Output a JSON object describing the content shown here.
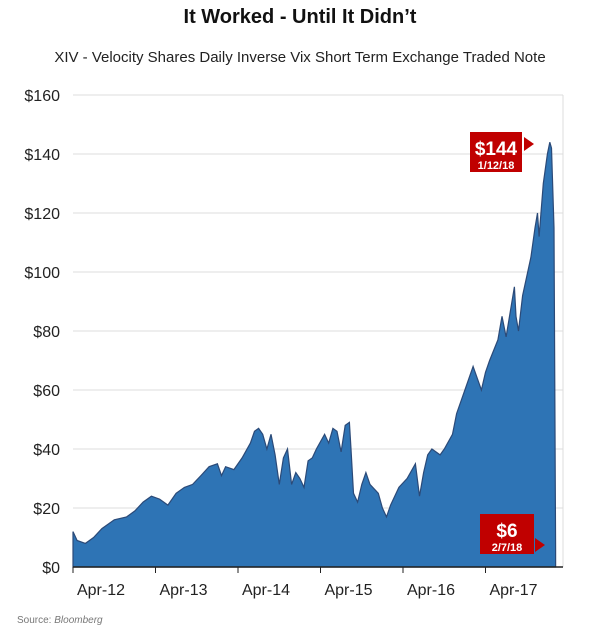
{
  "chart_data": {
    "type": "area",
    "title": "It Worked - Until It Didn’t",
    "subtitle": "XIV - Velocity Shares Daily Inverse Vix Short Term Exchange Traded Note",
    "xlabel": "",
    "ylabel": "",
    "ylim": [
      0,
      160
    ],
    "y_ticks": [
      "$0",
      "$20",
      "$40",
      "$60",
      "$80",
      "$100",
      "$120",
      "$140",
      "$160"
    ],
    "y_tick_values": [
      0,
      20,
      40,
      60,
      80,
      100,
      120,
      140,
      160
    ],
    "x_ticks": [
      "Apr-12",
      "Apr-13",
      "Apr-14",
      "Apr-15",
      "Apr-16",
      "Apr-17"
    ],
    "x_tick_values": [
      2012.25,
      2013.25,
      2014.25,
      2015.25,
      2016.25,
      2017.25
    ],
    "xlim": [
      2012.25,
      2018.2
    ],
    "grid": "horizontal",
    "color": "#2e74b5",
    "line_color": "#2b4a78",
    "series": [
      {
        "name": "XIV",
        "x": [
          2012.25,
          2012.3,
          2012.4,
          2012.5,
          2012.6,
          2012.75,
          2012.9,
          2013.0,
          2013.1,
          2013.2,
          2013.3,
          2013.4,
          2013.5,
          2013.6,
          2013.7,
          2013.8,
          2013.9,
          2014.0,
          2014.05,
          2014.1,
          2014.2,
          2014.3,
          2014.4,
          2014.45,
          2014.5,
          2014.55,
          2014.6,
          2014.65,
          2014.7,
          2014.75,
          2014.8,
          2014.85,
          2014.9,
          2014.95,
          2015.0,
          2015.05,
          2015.1,
          2015.15,
          2015.2,
          2015.3,
          2015.35,
          2015.4,
          2015.45,
          2015.5,
          2015.55,
          2015.6,
          2015.62,
          2015.65,
          2015.7,
          2015.75,
          2015.8,
          2015.85,
          2015.95,
          2016.0,
          2016.05,
          2016.1,
          2016.2,
          2016.3,
          2016.4,
          2016.45,
          2016.5,
          2016.55,
          2016.6,
          2016.7,
          2016.75,
          2016.85,
          2016.9,
          2017.0,
          2017.05,
          2017.1,
          2017.2,
          2017.25,
          2017.3,
          2017.4,
          2017.45,
          2017.5,
          2017.6,
          2017.62,
          2017.65,
          2017.7,
          2017.8,
          2017.85,
          2017.88,
          2017.9,
          2017.95,
          2018.0,
          2018.03,
          2018.05,
          2018.08,
          2018.1
        ],
        "values": [
          12,
          9,
          8,
          10,
          13,
          16,
          17,
          19,
          22,
          24,
          23,
          21,
          25,
          27,
          28,
          31,
          34,
          35,
          31,
          34,
          33,
          37,
          42,
          46,
          47,
          45,
          40,
          45,
          38,
          28,
          37,
          40,
          28,
          32,
          30,
          27,
          36,
          37,
          40,
          45,
          42,
          47,
          46,
          39,
          48,
          49,
          40,
          25,
          22,
          28,
          32,
          28,
          25,
          20,
          17,
          21,
          27,
          30,
          35,
          24,
          32,
          38,
          40,
          38,
          40,
          45,
          52,
          60,
          64,
          68,
          60,
          66,
          70,
          77,
          85,
          78,
          95,
          85,
          80,
          92,
          105,
          115,
          120,
          112,
          130,
          140,
          144,
          142,
          115,
          6
        ]
      }
    ],
    "annotations": [
      {
        "value": "$144",
        "date": "1/12/18",
        "x": 2018.03,
        "y": 144
      },
      {
        "value": "$6",
        "date": "2/7/18",
        "x": 2018.1,
        "y": 6
      }
    ],
    "source_label": "Source:",
    "source_name": "Bloomberg"
  }
}
